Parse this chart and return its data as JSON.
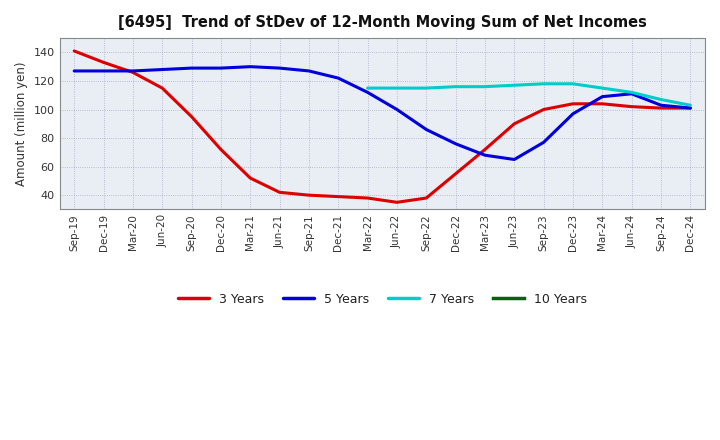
{
  "title": "[6495]  Trend of StDev of 12-Month Moving Sum of Net Incomes",
  "ylabel": "Amount (million yen)",
  "background_color": "#ffffff",
  "plot_bg_color": "#e8eef4",
  "grid_color": "#9999bb",
  "x_labels": [
    "Sep-19",
    "Dec-19",
    "Mar-20",
    "Jun-20",
    "Sep-20",
    "Dec-20",
    "Mar-21",
    "Jun-21",
    "Sep-21",
    "Dec-21",
    "Mar-22",
    "Jun-22",
    "Sep-22",
    "Dec-22",
    "Mar-23",
    "Jun-23",
    "Sep-23",
    "Dec-23",
    "Mar-24",
    "Jun-24",
    "Sep-24",
    "Dec-24"
  ],
  "series": [
    {
      "name": "3 Years",
      "color": "#dd0000",
      "data_x": [
        0,
        1,
        2,
        3,
        4,
        5,
        6,
        7,
        8,
        9,
        10,
        11,
        12,
        13,
        14,
        15,
        16,
        17,
        18,
        19,
        20,
        21
      ],
      "data_y": [
        141,
        133,
        126,
        115,
        95,
        72,
        52,
        42,
        40,
        39,
        38,
        35,
        38,
        55,
        72,
        90,
        100,
        104,
        104,
        102,
        101,
        101
      ]
    },
    {
      "name": "5 Years",
      "color": "#0000dd",
      "data_x": [
        0,
        1,
        2,
        3,
        4,
        5,
        6,
        7,
        8,
        9,
        10,
        11,
        12,
        13,
        14,
        15,
        16,
        17,
        18,
        19,
        20,
        21
      ],
      "data_y": [
        127,
        127,
        127,
        128,
        129,
        129,
        130,
        129,
        127,
        122,
        112,
        100,
        86,
        76,
        68,
        65,
        77,
        97,
        109,
        111,
        103,
        101
      ]
    },
    {
      "name": "7 Years",
      "color": "#00cccc",
      "data_x": [
        10,
        11,
        12,
        13,
        14,
        15,
        16,
        17,
        18,
        19,
        20,
        21
      ],
      "data_y": [
        115,
        115,
        115,
        116,
        116,
        117,
        118,
        118,
        115,
        112,
        107,
        103
      ]
    },
    {
      "name": "10 Years",
      "color": "#006600",
      "data_x": [],
      "data_y": []
    }
  ],
  "ylim": [
    30,
    150
  ],
  "yticks": [
    40,
    60,
    80,
    100,
    120,
    140
  ],
  "linewidth": 2.2
}
